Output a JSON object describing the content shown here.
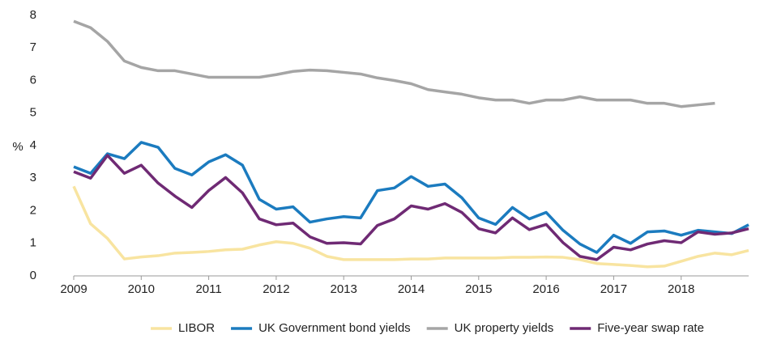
{
  "chart_data": {
    "type": "line",
    "y_label": "%",
    "x": [
      2009,
      2009.25,
      2009.5,
      2009.75,
      2010,
      2010.25,
      2010.5,
      2010.75,
      2011,
      2011.25,
      2011.5,
      2011.75,
      2012,
      2012.25,
      2012.5,
      2012.75,
      2013,
      2013.25,
      2013.5,
      2013.75,
      2014,
      2014.25,
      2014.5,
      2014.75,
      2015,
      2015.25,
      2015.5,
      2015.75,
      2016,
      2016.25,
      2016.5,
      2016.75,
      2017,
      2017.25,
      2017.5,
      2017.75,
      2018,
      2018.25,
      2018.5,
      2018.75,
      2019
    ],
    "series": [
      {
        "name": "LIBOR",
        "color": "#f8e4a0",
        "values": [
          2.75,
          1.6,
          1.15,
          0.52,
          0.58,
          0.62,
          0.7,
          0.72,
          0.75,
          0.8,
          0.82,
          0.95,
          1.05,
          1.0,
          0.85,
          0.6,
          0.5,
          0.5,
          0.5,
          0.5,
          0.52,
          0.52,
          0.55,
          0.55,
          0.55,
          0.55,
          0.57,
          0.57,
          0.58,
          0.57,
          0.5,
          0.38,
          0.35,
          0.32,
          0.28,
          0.3,
          0.45,
          0.6,
          0.7,
          0.65,
          0.78
        ]
      },
      {
        "name": "UK Government bond yields",
        "color": "#1b7bbf",
        "values": [
          3.35,
          3.15,
          3.75,
          3.6,
          4.1,
          3.95,
          3.3,
          3.1,
          3.5,
          3.72,
          3.4,
          2.35,
          2.05,
          2.12,
          1.65,
          1.75,
          1.82,
          1.78,
          2.62,
          2.7,
          3.05,
          2.75,
          2.82,
          2.4,
          1.78,
          1.58,
          2.1,
          1.75,
          1.95,
          1.4,
          0.98,
          0.72,
          1.25,
          1.0,
          1.35,
          1.38,
          1.25,
          1.4,
          1.35,
          1.3,
          1.57
        ]
      },
      {
        "name": "UK property yields",
        "color": "#a5a5a5",
        "values": [
          7.82,
          7.62,
          7.2,
          6.6,
          6.4,
          6.3,
          6.3,
          6.2,
          6.1,
          6.1,
          6.1,
          6.1,
          6.18,
          6.28,
          6.32,
          6.3,
          6.25,
          6.2,
          6.08,
          6.0,
          5.9,
          5.72,
          5.65,
          5.58,
          5.47,
          5.4,
          5.4,
          5.3,
          5.4,
          5.4,
          5.5,
          5.4,
          5.4,
          5.4,
          5.3,
          5.3,
          5.2,
          5.25,
          5.3,
          null,
          null
        ]
      },
      {
        "name": "Five-year swap rate",
        "color": "#6f2a74",
        "values": [
          3.2,
          3.0,
          3.7,
          3.15,
          3.4,
          2.85,
          2.45,
          2.1,
          2.62,
          3.02,
          2.55,
          1.75,
          1.57,
          1.62,
          1.2,
          1.0,
          1.02,
          0.98,
          1.55,
          1.75,
          2.15,
          2.05,
          2.22,
          1.95,
          1.45,
          1.32,
          1.78,
          1.42,
          1.58,
          1.02,
          0.6,
          0.5,
          0.88,
          0.8,
          0.98,
          1.08,
          1.02,
          1.35,
          1.28,
          1.32,
          1.45
        ]
      }
    ],
    "xlim": [
      2009,
      2019
    ],
    "xticks": [
      2009,
      2010,
      2011,
      2012,
      2013,
      2014,
      2015,
      2016,
      2017,
      2018
    ],
    "ylim": [
      0,
      8
    ],
    "yticks": [
      0,
      1,
      2,
      3,
      4,
      5,
      6,
      7,
      8
    ],
    "grid": false,
    "legend": "bottom"
  }
}
